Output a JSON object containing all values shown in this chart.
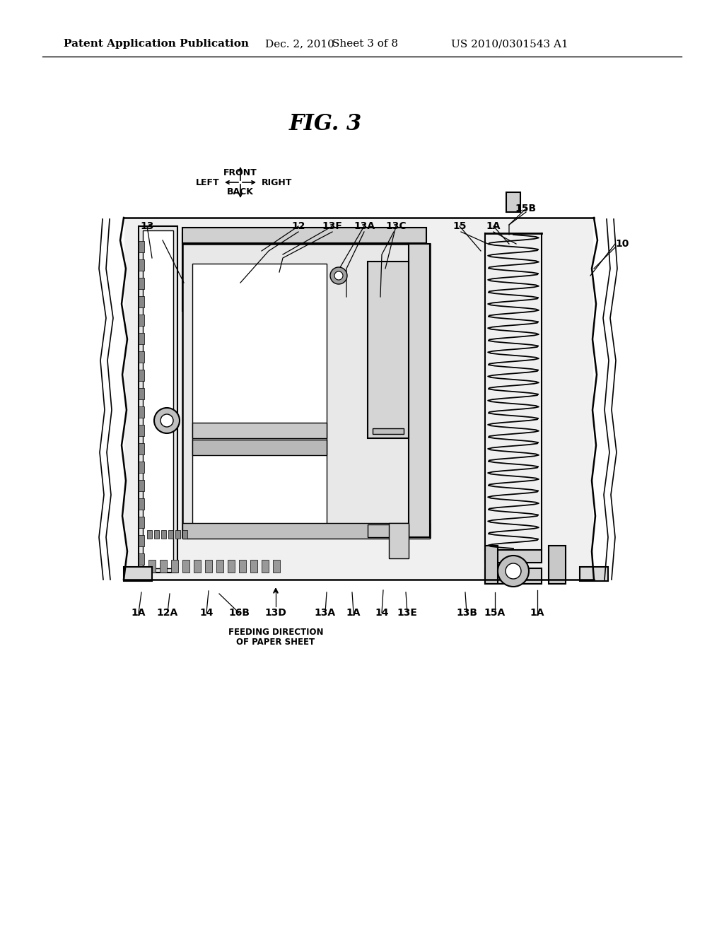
{
  "background_color": "#ffffff",
  "header_text": "Patent Application Publication",
  "header_date": "Dec. 2, 2010",
  "header_sheet": "Sheet 3 of 8",
  "header_patent": "US 2010/0301543 A1",
  "fig_title": "FIG. 3",
  "header_fontsize": 11,
  "fig_title_fontsize": 22,
  "label_fontsize": 10,
  "dir_fontsize": 9,
  "note_fontsize": 8.5
}
